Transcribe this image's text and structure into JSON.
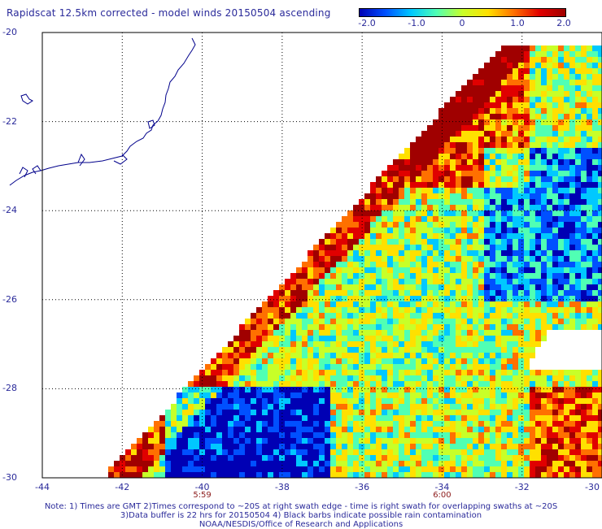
{
  "title": "Rapidscat 12.5km corrected - model winds 20150504 ascending",
  "colorbar": {
    "labels": [
      "-2.0",
      "-1.0",
      "0",
      "1.0",
      "2.0"
    ],
    "min": -2.0,
    "max": 2.0,
    "colors": [
      "#0000b4",
      "#0050ff",
      "#00c8ff",
      "#50ffb4",
      "#c8ff28",
      "#ffe000",
      "#ff7000",
      "#e00000",
      "#a00000"
    ]
  },
  "map": {
    "lon_range": [
      -44,
      -30
    ],
    "lat_range": [
      -30,
      -20
    ],
    "lon_ticks": [
      "-44",
      "-42",
      "-40",
      "-38",
      "-36",
      "-34",
      "-32",
      "-30"
    ],
    "lat_ticks": [
      "-20",
      "-22",
      "-24",
      "-26",
      "-28",
      "-30"
    ],
    "time_marks": [
      {
        "lon": -40,
        "text": "5:59"
      },
      {
        "lon": -34,
        "text": "6:00"
      }
    ],
    "grid": "dotted",
    "coastline_color": "#00008b"
  },
  "notes": [
    "Note: 1) Times are GMT 2)Times correspond to ~20S at right swath edge - time is right swath for overlapping swaths at ~20S",
    "3)Data buffer is 22 hrs for 20150504 4) Black barbs indicate possible rain contamination",
    "NOAA/NESDIS/Office of Research and Applications"
  ]
}
